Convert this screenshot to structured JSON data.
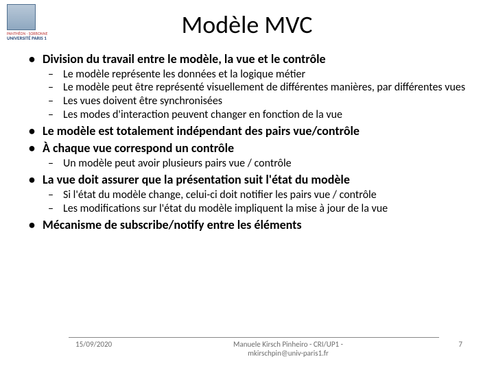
{
  "logo": {
    "line1": "PANTHÉON · SORBONNE",
    "line2": "UNIVERSITÉ PARIS 1"
  },
  "title": "Modèle MVC",
  "bullets": [
    {
      "text": "Division du travail entre le modèle, la vue et le contrôle",
      "sub": [
        "Le modèle représente les données et la logique métier",
        "Le modèle peut être représenté visuellement de différentes manières, par différentes vues",
        "Les vues doivent être synchronisées",
        "Les modes d'interaction peuvent changer en fonction de la vue"
      ]
    },
    {
      "text": "Le modèle est totalement indépendant des pairs vue/contrôle",
      "sub": []
    },
    {
      "text": "À chaque vue correspond un contrôle",
      "sub": [
        "Un modèle peut avoir plusieurs pairs vue / contrôle"
      ]
    },
    {
      "text": "La vue doit assurer que la présentation suit l'état du modèle",
      "sub": [
        "Si l'état du modèle change, celui-ci doit notifier les pairs vue / contrôle",
        "Les modifications sur l'état du modèle impliquent la mise à jour de la vue"
      ]
    },
    {
      "text": "Mécanisme de subscribe/notify entre les éléments",
      "sub": []
    }
  ],
  "footer": {
    "date": "15/09/2020",
    "author_line1": "Manuele Kirsch Pinheiro - CRI/UP1 -",
    "author_line2": "mkirschpin@univ-paris1.fr",
    "page": "7"
  },
  "colors": {
    "text": "#000000",
    "footer_text": "#6a6a6a",
    "background": "#ffffff"
  },
  "fontsizes": {
    "title": 36,
    "lvl1": 18,
    "lvl2": 16,
    "footer": 11
  }
}
